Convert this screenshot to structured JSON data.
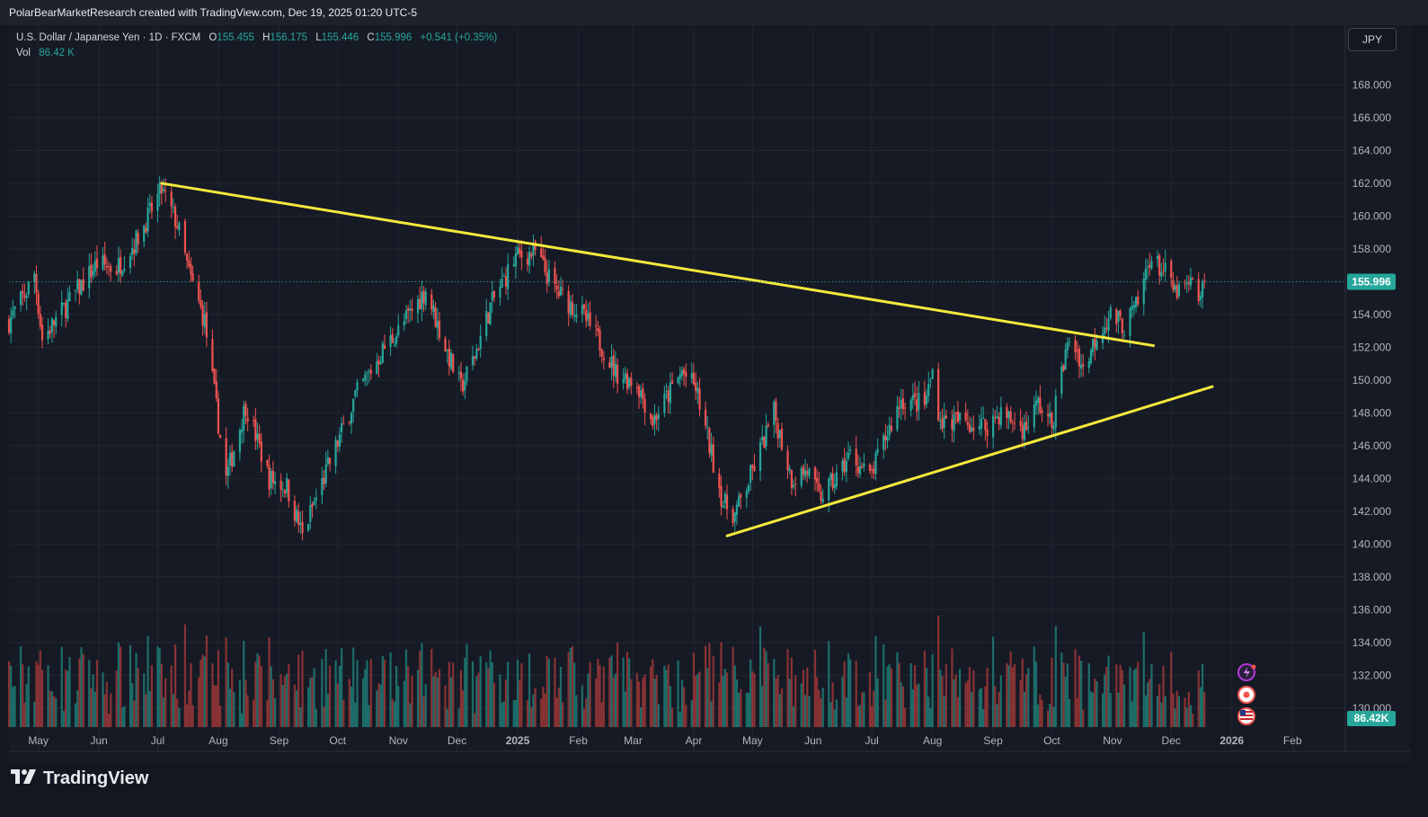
{
  "header": {
    "credit": "PolarBearMarketResearch created with TradingView.com, Dec 19, 2025 01:20 UTC-5"
  },
  "legend": {
    "symbol": "U.S. Dollar / Japanese Yen · 1D · FXCM",
    "open_label": "O",
    "open": "155.455",
    "high_label": "H",
    "high": "156.175",
    "low_label": "L",
    "low": "155.446",
    "close_label": "C",
    "close": "155.996",
    "change": "+0.541 (+0.35%)",
    "vol_label": "Vol",
    "vol": "86.42 K"
  },
  "currency_button": "JPY",
  "price_tag": "155.996",
  "volume_tag": "86.42K",
  "brand": "TradingView",
  "colors": {
    "up": "#26a69a",
    "down": "#ef5350",
    "trendline": "#f5e93c",
    "background": "#161a25",
    "text": "#d1d4dc"
  },
  "icons": [
    "lightning-icon",
    "record-icon",
    "us-flag-icon"
  ],
  "chart_data": {
    "type": "candlestick",
    "title": "",
    "xlabel": "",
    "ylabel": "",
    "ylim": [
      129,
      170
    ],
    "y_ticks": [
      "168.000",
      "166.000",
      "164.000",
      "162.000",
      "160.000",
      "158.000",
      "156.000",
      "154.000",
      "152.000",
      "150.000",
      "148.000",
      "146.000",
      "144.000",
      "142.000",
      "140.000",
      "138.000",
      "136.000",
      "134.000",
      "132.000",
      "130.000"
    ],
    "x_ticks": [
      "May",
      "Jun",
      "Jul",
      "Aug",
      "Sep",
      "Oct",
      "Nov",
      "Dec",
      "2025",
      "Feb",
      "Mar",
      "Apr",
      "May",
      "Jun",
      "Jul",
      "Aug",
      "Sep",
      "Oct",
      "Nov",
      "Dec",
      "2026",
      "Feb"
    ],
    "x_range": [
      "2024-04-16",
      "2026-02-28"
    ],
    "close_anchors": [
      [
        "2024-04-16",
        153.6
      ],
      [
        "2024-04-25",
        155.4
      ],
      [
        "2024-04-29",
        156.5
      ],
      [
        "2024-05-03",
        152.5
      ],
      [
        "2024-05-15",
        154.5
      ],
      [
        "2024-05-31",
        157.1
      ],
      [
        "2024-06-10",
        156.8
      ],
      [
        "2024-06-20",
        158.5
      ],
      [
        "2024-07-03",
        161.6
      ],
      [
        "2024-07-11",
        159.5
      ],
      [
        "2024-07-17",
        156.5
      ],
      [
        "2024-07-25",
        153.6
      ],
      [
        "2024-08-02",
        146.5
      ],
      [
        "2024-08-05",
        144.0
      ],
      [
        "2024-08-15",
        148.5
      ],
      [
        "2024-08-27",
        144.0
      ],
      [
        "2024-09-05",
        143.5
      ],
      [
        "2024-09-13",
        140.5
      ],
      [
        "2024-09-18",
        142.2
      ],
      [
        "2024-10-02",
        146.5
      ],
      [
        "2024-10-10",
        149.0
      ],
      [
        "2024-10-25",
        152.0
      ],
      [
        "2024-11-01",
        153.0
      ],
      [
        "2024-11-15",
        155.5
      ],
      [
        "2024-11-25",
        152.0
      ],
      [
        "2024-12-03",
        149.5
      ],
      [
        "2024-12-10",
        151.5
      ],
      [
        "2024-12-18",
        154.5
      ],
      [
        "2024-12-31",
        157.5
      ],
      [
        "2025-01-10",
        157.8
      ],
      [
        "2025-01-20",
        155.5
      ],
      [
        "2025-02-03",
        154.0
      ],
      [
        "2025-02-12",
        152.3
      ],
      [
        "2025-02-20",
        150.5
      ],
      [
        "2025-03-03",
        149.8
      ],
      [
        "2025-03-11",
        147.5
      ],
      [
        "2025-03-26",
        150.5
      ],
      [
        "2025-04-02",
        149.5
      ],
      [
        "2025-04-08",
        146.5
      ],
      [
        "2025-04-16",
        142.5
      ],
      [
        "2025-04-22",
        141.8
      ],
      [
        "2025-04-28",
        143.5
      ],
      [
        "2025-05-12",
        148.0
      ],
      [
        "2025-05-21",
        144.0
      ],
      [
        "2025-05-29",
        144.5
      ],
      [
        "2025-06-04",
        142.8
      ],
      [
        "2025-06-13",
        144.0
      ],
      [
        "2025-06-20",
        145.5
      ],
      [
        "2025-06-30",
        144.0
      ],
      [
        "2025-07-08",
        146.5
      ],
      [
        "2025-07-16",
        148.8
      ],
      [
        "2025-07-28",
        148.5
      ],
      [
        "2025-08-01",
        150.5
      ],
      [
        "2025-08-05",
        147.5
      ],
      [
        "2025-08-15",
        147.5
      ],
      [
        "2025-08-28",
        147.2
      ],
      [
        "2025-09-05",
        148.0
      ],
      [
        "2025-09-17",
        147.0
      ],
      [
        "2025-09-24",
        148.6
      ],
      [
        "2025-10-01",
        147.2
      ],
      [
        "2025-10-06",
        150.5
      ],
      [
        "2025-10-10",
        152.5
      ],
      [
        "2025-10-14",
        151.8
      ],
      [
        "2025-10-17",
        150.6
      ],
      [
        "2025-10-24",
        152.8
      ],
      [
        "2025-10-31",
        154.0
      ],
      [
        "2025-11-07",
        153.3
      ],
      [
        "2025-11-14",
        154.6
      ],
      [
        "2025-11-20",
        157.5
      ],
      [
        "2025-11-28",
        156.5
      ],
      [
        "2025-12-03",
        155.3
      ],
      [
        "2025-12-08",
        155.6
      ],
      [
        "2025-12-12",
        155.8
      ],
      [
        "2025-12-16",
        154.9
      ],
      [
        "2025-12-18",
        155.996
      ]
    ],
    "volume_max": 150000,
    "trendlines": [
      {
        "name": "",
        "from": [
          "2024-07-03",
          162.0
        ],
        "to": [
          "2025-11-22",
          152.1
        ]
      },
      {
        "name": "",
        "from": [
          "2025-04-18",
          140.5
        ],
        "to": [
          "2025-12-22",
          149.6
        ]
      }
    ],
    "grid": true
  }
}
